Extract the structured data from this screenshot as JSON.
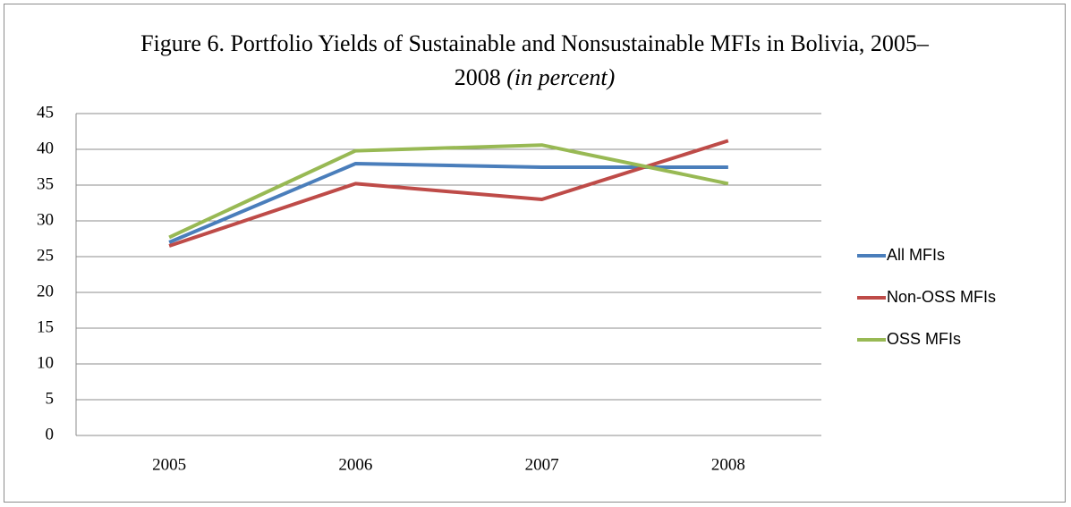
{
  "chart_data": {
    "type": "line",
    "title": "Figure 6. Portfolio Yields of Sustainable and Nonsustainable MFIs in Bolivia, 2005–2008",
    "title_note": "(in percent)",
    "categories": [
      "2005",
      "2006",
      "2007",
      "2008"
    ],
    "series": [
      {
        "name": "All MFIs",
        "color": "#4a7ebb",
        "values": [
          27,
          38,
          37.5,
          37.5
        ]
      },
      {
        "name": "Non-OSS MFIs",
        "color": "#be4b48",
        "values": [
          26.5,
          35.2,
          33,
          41.2
        ]
      },
      {
        "name": "OSS MFIs",
        "color": "#98b954",
        "values": [
          27.7,
          39.8,
          40.6,
          35.2
        ]
      }
    ],
    "ylim": [
      0,
      45
    ],
    "yticks": [
      0,
      5,
      10,
      15,
      20,
      25,
      30,
      35,
      40,
      45
    ],
    "grid": true,
    "legend": "right"
  }
}
